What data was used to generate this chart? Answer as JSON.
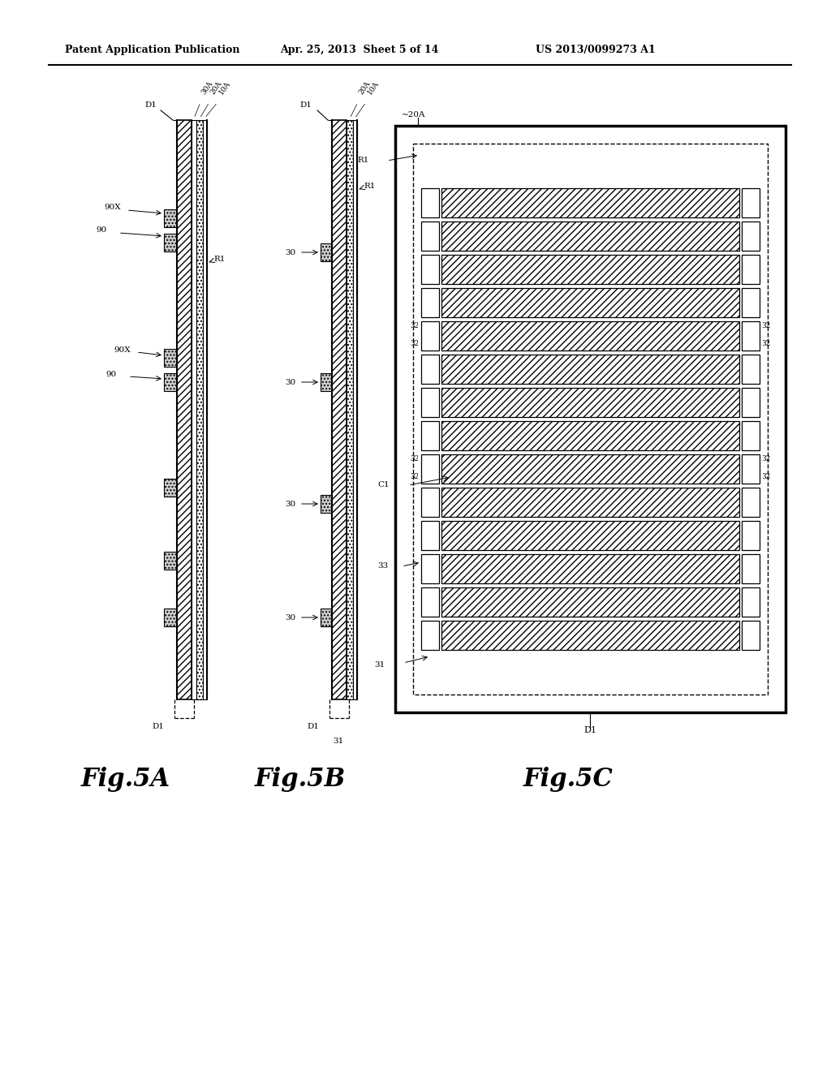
{
  "header_left": "Patent Application Publication",
  "header_mid": "Apr. 25, 2013  Sheet 5 of 14",
  "header_right": "US 2013/0099273 A1",
  "bg_color": "#ffffff"
}
